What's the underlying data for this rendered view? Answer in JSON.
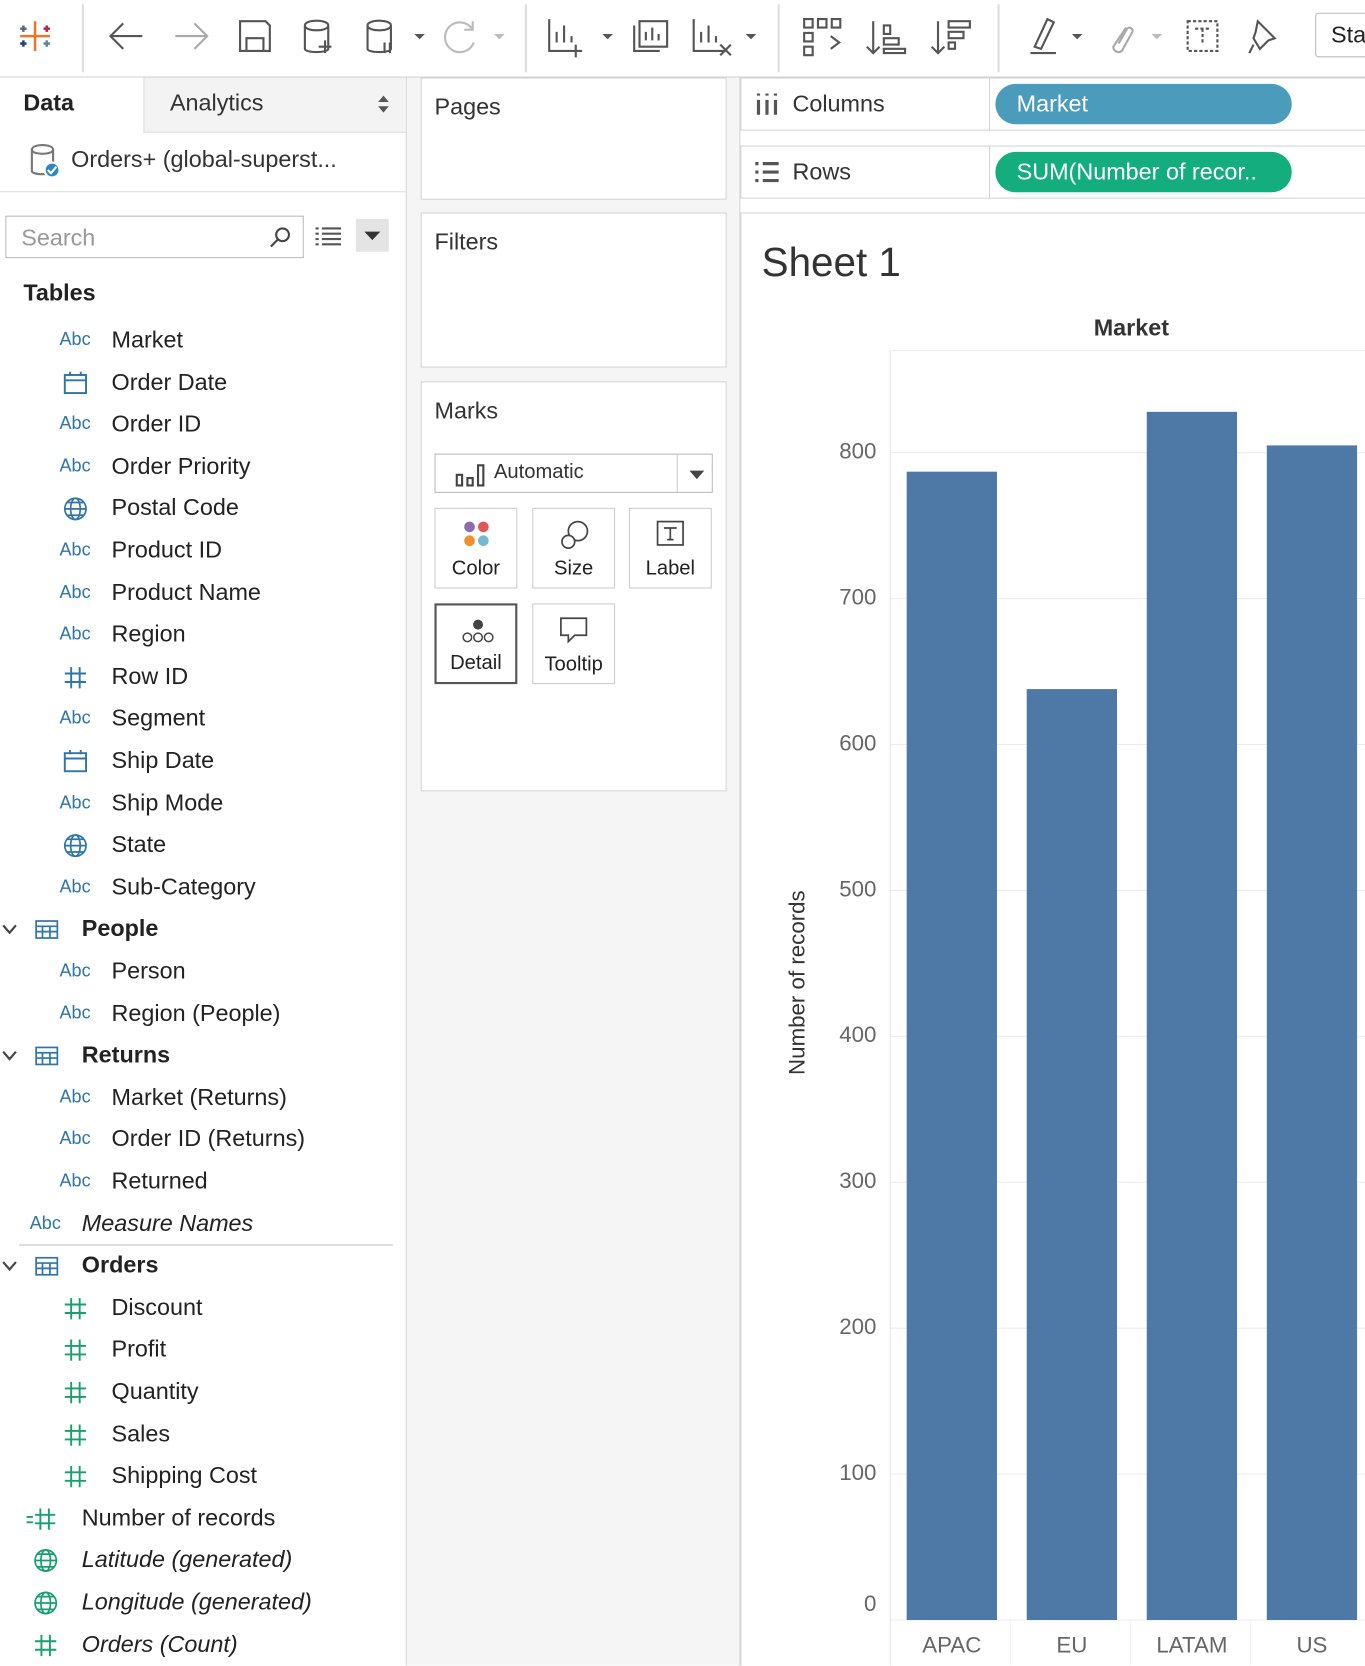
{
  "toolbar": {
    "start_button": "Sta"
  },
  "data_pane": {
    "tabs": [
      "Data",
      "Analytics"
    ],
    "datasource": "Orders+ (global-superst...",
    "search_placeholder": "Search",
    "tables_heading": "Tables",
    "fields": [
      {
        "icon": "Abc",
        "label": "Market"
      },
      {
        "label": "Order Date"
      },
      {
        "icon": "Abc",
        "label": "Order ID"
      },
      {
        "icon": "Abc",
        "label": "Order Priority"
      },
      {
        "label": "Postal Code"
      },
      {
        "icon": "Abc",
        "label": "Product ID"
      },
      {
        "icon": "Abc",
        "label": "Product Name"
      },
      {
        "icon": "Abc",
        "label": "Region"
      },
      {
        "label": "Row ID"
      },
      {
        "icon": "Abc",
        "label": "Segment"
      },
      {
        "label": "Ship Date"
      },
      {
        "icon": "Abc",
        "label": "Ship Mode"
      },
      {
        "label": "State"
      },
      {
        "icon": "Abc",
        "label": "Sub-Category"
      },
      {
        "label": "People"
      },
      {
        "icon": "Abc",
        "label": "Person"
      },
      {
        "icon": "Abc",
        "label": "Region (People)"
      },
      {
        "label": "Returns"
      },
      {
        "icon": "Abc",
        "label": "Market (Returns)"
      },
      {
        "icon": "Abc",
        "label": "Order ID (Returns)"
      },
      {
        "icon": "Abc",
        "label": "Returned"
      },
      {
        "icon": "Abc",
        "label": "Measure Names"
      },
      {
        "label": "Orders"
      },
      {
        "label": "Discount"
      },
      {
        "label": "Profit"
      },
      {
        "label": "Quantity"
      },
      {
        "label": "Sales"
      },
      {
        "label": "Shipping Cost"
      },
      {
        "label": "Number of records"
      },
      {
        "label": "Latitude (generated)"
      },
      {
        "label": "Longitude (generated)"
      },
      {
        "label": "Orders (Count)"
      }
    ]
  },
  "pages_card": {
    "title": "Pages"
  },
  "filters_card": {
    "title": "Filters"
  },
  "marks_card": {
    "title": "Marks",
    "mark_type": "Automatic",
    "buttons": [
      "Color",
      "Size",
      "Label",
      "Detail",
      "Tooltip"
    ]
  },
  "shelves": {
    "columns": {
      "label": "Columns",
      "pill": "Market"
    },
    "rows": {
      "label": "Rows",
      "pill": "SUM(Number of recor.."
    }
  },
  "sheet": {
    "title": "Sheet 1"
  },
  "chart_data": {
    "type": "bar",
    "column_header": "Market",
    "y_label": "Number of records",
    "categories": [
      "APAC",
      "EU",
      "LATAM",
      "US"
    ],
    "values": [
      787,
      638,
      828,
      805
    ],
    "color": "#4e79a7",
    "ylim": [
      0,
      870
    ],
    "yticks": [
      0,
      100,
      200,
      300,
      400,
      500,
      600,
      700,
      800
    ],
    "grid": true
  }
}
